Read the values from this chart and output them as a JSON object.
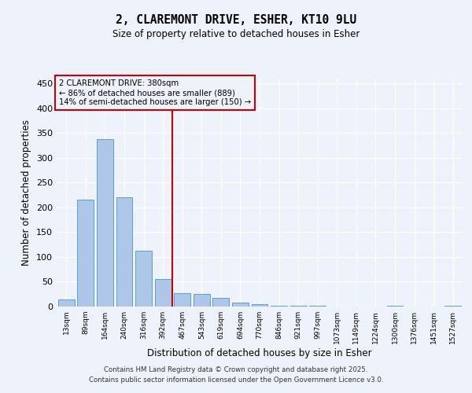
{
  "title_line1": "2, CLAREMONT DRIVE, ESHER, KT10 9LU",
  "title_line2": "Size of property relative to detached houses in Esher",
  "xlabel": "Distribution of detached houses by size in Esher",
  "ylabel": "Number of detached properties",
  "categories": [
    "13sqm",
    "89sqm",
    "164sqm",
    "240sqm",
    "316sqm",
    "392sqm",
    "467sqm",
    "543sqm",
    "619sqm",
    "694sqm",
    "770sqm",
    "846sqm",
    "921sqm",
    "997sqm",
    "1073sqm",
    "1149sqm",
    "1224sqm",
    "1300sqm",
    "1376sqm",
    "1451sqm",
    "1527sqm"
  ],
  "values": [
    15,
    216,
    338,
    221,
    112,
    55,
    27,
    25,
    18,
    8,
    5,
    1,
    1,
    1,
    0,
    0,
    0,
    2,
    0,
    0,
    2
  ],
  "bar_color": "#aec6e8",
  "bar_edge_color": "#5a9fd4",
  "vline_x": 5.5,
  "vline_color": "#cc0000",
  "annotation_text": "2 CLAREMONT DRIVE: 380sqm\n← 86% of detached houses are smaller (889)\n14% of semi-detached houses are larger (150) →",
  "annotation_box_color": "#cc0000",
  "annotation_text_color": "#000000",
  "ylim": [
    0,
    460
  ],
  "yticks": [
    0,
    50,
    100,
    150,
    200,
    250,
    300,
    350,
    400,
    450
  ],
  "background_color": "#eef2fb",
  "grid_color": "#ffffff",
  "footer_line1": "Contains HM Land Registry data © Crown copyright and database right 2025.",
  "footer_line2": "Contains public sector information licensed under the Open Government Licence v3.0."
}
